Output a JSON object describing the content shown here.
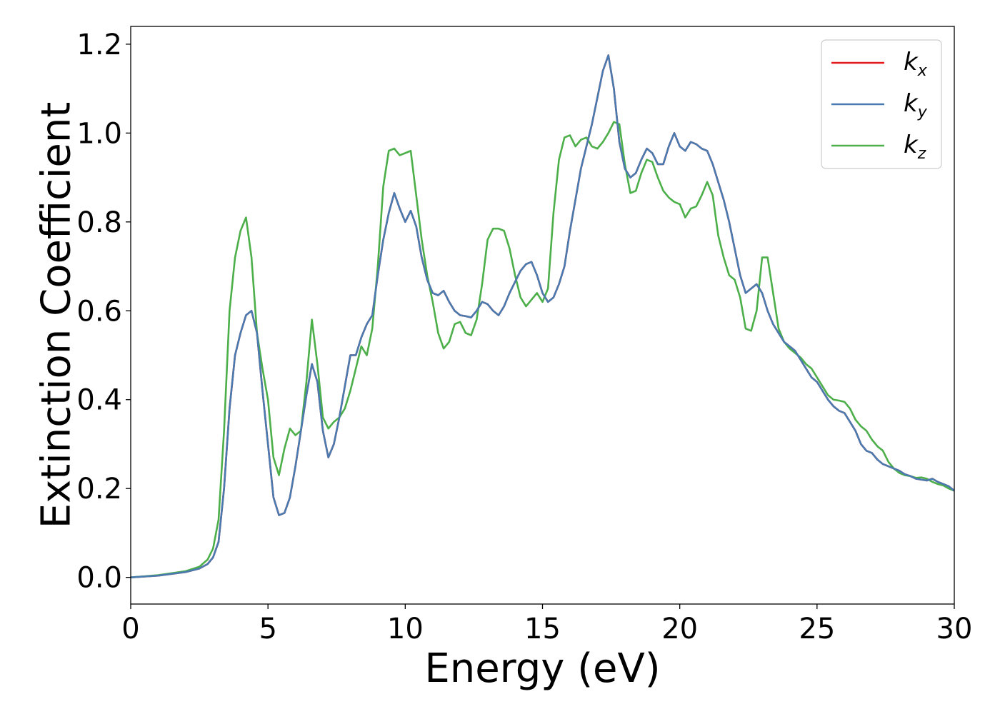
{
  "chart_data": {
    "type": "line",
    "title": "",
    "xlabel": "Energy (eV)",
    "ylabel": "Extinction Coefficient",
    "xlim": [
      0,
      30
    ],
    "ylim": [
      -0.06,
      1.24
    ],
    "xticks": [
      0,
      5,
      10,
      15,
      20,
      25,
      30
    ],
    "xtick_labels": [
      "0",
      "5",
      "10",
      "15",
      "20",
      "25",
      "30"
    ],
    "yticks": [
      0.0,
      0.2,
      0.4,
      0.6,
      0.8,
      1.0,
      1.2
    ],
    "ytick_labels": [
      "0.0",
      "0.2",
      "0.4",
      "0.6",
      "0.8",
      "1.0",
      "1.2"
    ],
    "grid": false,
    "legend_position": "top-right",
    "series": [
      {
        "name": "k",
        "subscript": "x",
        "color": "#e41a1c",
        "x": [
          0,
          1,
          2,
          2.5,
          2.8,
          3.0,
          3.2,
          3.4,
          3.6,
          3.8,
          4.0,
          4.2,
          4.4,
          4.6,
          4.8,
          5.0,
          5.2,
          5.4,
          5.6,
          5.8,
          6.0,
          6.2,
          6.4,
          6.6,
          6.8,
          7.0,
          7.2,
          7.4,
          7.6,
          7.8,
          8.0,
          8.2,
          8.4,
          8.6,
          8.8,
          9.0,
          9.2,
          9.4,
          9.6,
          9.8,
          10.0,
          10.2,
          10.4,
          10.6,
          10.8,
          11.0,
          11.2,
          11.4,
          11.6,
          11.8,
          12.0,
          12.2,
          12.4,
          12.6,
          12.8,
          13.0,
          13.2,
          13.4,
          13.6,
          13.8,
          14.0,
          14.2,
          14.4,
          14.6,
          14.8,
          15.0,
          15.2,
          15.4,
          15.6,
          15.8,
          16.0,
          16.2,
          16.4,
          16.6,
          16.8,
          17.0,
          17.2,
          17.4,
          17.6,
          17.8,
          18.0,
          18.2,
          18.4,
          18.6,
          18.8,
          19.0,
          19.2,
          19.4,
          19.6,
          19.8,
          20.0,
          20.2,
          20.4,
          20.6,
          20.8,
          21.0,
          21.2,
          21.4,
          21.6,
          21.8,
          22.0,
          22.2,
          22.4,
          22.6,
          22.8,
          23.0,
          23.2,
          23.4,
          23.6,
          23.8,
          24.0,
          24.2,
          24.4,
          24.6,
          24.8,
          25.0,
          25.2,
          25.4,
          25.6,
          25.8,
          26.0,
          26.2,
          26.4,
          26.6,
          26.8,
          27.0,
          27.2,
          27.4,
          27.6,
          27.8,
          28.0,
          28.2,
          28.4,
          28.6,
          28.8,
          29.0,
          29.2,
          29.4,
          29.6,
          29.8,
          30.0
        ],
        "y": [
          0.0,
          0.004,
          0.012,
          0.02,
          0.03,
          0.045,
          0.08,
          0.2,
          0.38,
          0.5,
          0.55,
          0.59,
          0.6,
          0.55,
          0.42,
          0.3,
          0.18,
          0.14,
          0.145,
          0.18,
          0.25,
          0.33,
          0.41,
          0.48,
          0.44,
          0.33,
          0.27,
          0.3,
          0.36,
          0.43,
          0.5,
          0.5,
          0.54,
          0.57,
          0.59,
          0.68,
          0.76,
          0.82,
          0.865,
          0.83,
          0.8,
          0.825,
          0.79,
          0.72,
          0.67,
          0.64,
          0.635,
          0.645,
          0.62,
          0.6,
          0.59,
          0.588,
          0.585,
          0.6,
          0.62,
          0.615,
          0.6,
          0.59,
          0.61,
          0.64,
          0.665,
          0.69,
          0.705,
          0.71,
          0.68,
          0.64,
          0.62,
          0.63,
          0.66,
          0.7,
          0.78,
          0.85,
          0.92,
          0.97,
          1.02,
          1.08,
          1.14,
          1.175,
          1.1,
          0.98,
          0.92,
          0.9,
          0.91,
          0.94,
          0.965,
          0.955,
          0.93,
          0.93,
          0.97,
          1.0,
          0.97,
          0.96,
          0.98,
          0.975,
          0.965,
          0.96,
          0.93,
          0.89,
          0.85,
          0.8,
          0.74,
          0.68,
          0.64,
          0.65,
          0.66,
          0.64,
          0.6,
          0.57,
          0.55,
          0.53,
          0.52,
          0.51,
          0.49,
          0.47,
          0.45,
          0.44,
          0.42,
          0.4,
          0.385,
          0.375,
          0.37,
          0.35,
          0.33,
          0.3,
          0.285,
          0.28,
          0.265,
          0.255,
          0.25,
          0.245,
          0.24,
          0.232,
          0.228,
          0.222,
          0.22,
          0.218,
          0.222,
          0.215,
          0.21,
          0.205,
          0.195
        ]
      },
      {
        "name": "k",
        "subscript": "y",
        "color": "#4a7bb0",
        "x": [
          0,
          1,
          2,
          2.5,
          2.8,
          3.0,
          3.2,
          3.4,
          3.6,
          3.8,
          4.0,
          4.2,
          4.4,
          4.6,
          4.8,
          5.0,
          5.2,
          5.4,
          5.6,
          5.8,
          6.0,
          6.2,
          6.4,
          6.6,
          6.8,
          7.0,
          7.2,
          7.4,
          7.6,
          7.8,
          8.0,
          8.2,
          8.4,
          8.6,
          8.8,
          9.0,
          9.2,
          9.4,
          9.6,
          9.8,
          10.0,
          10.2,
          10.4,
          10.6,
          10.8,
          11.0,
          11.2,
          11.4,
          11.6,
          11.8,
          12.0,
          12.2,
          12.4,
          12.6,
          12.8,
          13.0,
          13.2,
          13.4,
          13.6,
          13.8,
          14.0,
          14.2,
          14.4,
          14.6,
          14.8,
          15.0,
          15.2,
          15.4,
          15.6,
          15.8,
          16.0,
          16.2,
          16.4,
          16.6,
          16.8,
          17.0,
          17.2,
          17.4,
          17.6,
          17.8,
          18.0,
          18.2,
          18.4,
          18.6,
          18.8,
          19.0,
          19.2,
          19.4,
          19.6,
          19.8,
          20.0,
          20.2,
          20.4,
          20.6,
          20.8,
          21.0,
          21.2,
          21.4,
          21.6,
          21.8,
          22.0,
          22.2,
          22.4,
          22.6,
          22.8,
          23.0,
          23.2,
          23.4,
          23.6,
          23.8,
          24.0,
          24.2,
          24.4,
          24.6,
          24.8,
          25.0,
          25.2,
          25.4,
          25.6,
          25.8,
          26.0,
          26.2,
          26.4,
          26.6,
          26.8,
          27.0,
          27.2,
          27.4,
          27.6,
          27.8,
          28.0,
          28.2,
          28.4,
          28.6,
          28.8,
          29.0,
          29.2,
          29.4,
          29.6,
          29.8,
          30.0
        ],
        "y": [
          0.0,
          0.004,
          0.012,
          0.02,
          0.03,
          0.045,
          0.08,
          0.2,
          0.38,
          0.5,
          0.55,
          0.59,
          0.6,
          0.55,
          0.42,
          0.3,
          0.18,
          0.14,
          0.145,
          0.18,
          0.25,
          0.33,
          0.41,
          0.48,
          0.44,
          0.33,
          0.27,
          0.3,
          0.36,
          0.43,
          0.5,
          0.5,
          0.54,
          0.57,
          0.59,
          0.68,
          0.76,
          0.82,
          0.865,
          0.83,
          0.8,
          0.825,
          0.79,
          0.72,
          0.67,
          0.64,
          0.635,
          0.645,
          0.62,
          0.6,
          0.59,
          0.588,
          0.585,
          0.6,
          0.62,
          0.615,
          0.6,
          0.59,
          0.61,
          0.64,
          0.665,
          0.69,
          0.705,
          0.71,
          0.68,
          0.64,
          0.62,
          0.63,
          0.66,
          0.7,
          0.78,
          0.85,
          0.92,
          0.97,
          1.02,
          1.08,
          1.14,
          1.175,
          1.1,
          0.98,
          0.92,
          0.9,
          0.91,
          0.94,
          0.965,
          0.955,
          0.93,
          0.93,
          0.97,
          1.0,
          0.97,
          0.96,
          0.98,
          0.975,
          0.965,
          0.96,
          0.93,
          0.89,
          0.85,
          0.8,
          0.74,
          0.68,
          0.64,
          0.65,
          0.66,
          0.64,
          0.6,
          0.57,
          0.55,
          0.53,
          0.52,
          0.51,
          0.49,
          0.47,
          0.45,
          0.44,
          0.42,
          0.4,
          0.385,
          0.375,
          0.37,
          0.35,
          0.33,
          0.3,
          0.285,
          0.28,
          0.265,
          0.255,
          0.25,
          0.245,
          0.24,
          0.232,
          0.228,
          0.222,
          0.22,
          0.218,
          0.222,
          0.215,
          0.21,
          0.205,
          0.195
        ]
      },
      {
        "name": "k",
        "subscript": "z",
        "color": "#4daf4a",
        "x": [
          0,
          1,
          2,
          2.5,
          2.8,
          3.0,
          3.2,
          3.4,
          3.6,
          3.8,
          4.0,
          4.2,
          4.4,
          4.6,
          4.8,
          5.0,
          5.2,
          5.4,
          5.6,
          5.8,
          6.0,
          6.2,
          6.4,
          6.6,
          6.8,
          7.0,
          7.2,
          7.4,
          7.6,
          7.8,
          8.0,
          8.2,
          8.4,
          8.6,
          8.8,
          9.0,
          9.2,
          9.4,
          9.6,
          9.8,
          10.0,
          10.2,
          10.4,
          10.6,
          10.8,
          11.0,
          11.2,
          11.4,
          11.6,
          11.8,
          12.0,
          12.2,
          12.4,
          12.6,
          12.8,
          13.0,
          13.2,
          13.4,
          13.6,
          13.8,
          14.0,
          14.2,
          14.4,
          14.6,
          14.8,
          15.0,
          15.2,
          15.4,
          15.6,
          15.8,
          16.0,
          16.2,
          16.4,
          16.6,
          16.8,
          17.0,
          17.2,
          17.4,
          17.6,
          17.8,
          18.0,
          18.2,
          18.4,
          18.6,
          18.8,
          19.0,
          19.2,
          19.4,
          19.6,
          19.8,
          20.0,
          20.2,
          20.4,
          20.6,
          20.8,
          21.0,
          21.2,
          21.4,
          21.6,
          21.8,
          22.0,
          22.2,
          22.4,
          22.6,
          22.8,
          23.0,
          23.2,
          23.4,
          23.6,
          23.8,
          24.0,
          24.2,
          24.4,
          24.6,
          24.8,
          25.0,
          25.2,
          25.4,
          25.6,
          25.8,
          26.0,
          26.2,
          26.4,
          26.6,
          26.8,
          27.0,
          27.2,
          27.4,
          27.6,
          27.8,
          28.0,
          28.2,
          28.4,
          28.6,
          28.8,
          29.0,
          29.2,
          29.4,
          29.6,
          29.8,
          30.0
        ],
        "y": [
          0.0,
          0.005,
          0.014,
          0.024,
          0.04,
          0.065,
          0.13,
          0.33,
          0.6,
          0.72,
          0.78,
          0.81,
          0.72,
          0.55,
          0.47,
          0.4,
          0.27,
          0.23,
          0.29,
          0.335,
          0.32,
          0.33,
          0.44,
          0.58,
          0.48,
          0.36,
          0.335,
          0.35,
          0.36,
          0.38,
          0.42,
          0.47,
          0.52,
          0.5,
          0.56,
          0.7,
          0.88,
          0.96,
          0.965,
          0.95,
          0.955,
          0.96,
          0.86,
          0.76,
          0.68,
          0.62,
          0.55,
          0.515,
          0.53,
          0.57,
          0.575,
          0.55,
          0.545,
          0.58,
          0.66,
          0.76,
          0.785,
          0.785,
          0.78,
          0.74,
          0.68,
          0.63,
          0.61,
          0.625,
          0.64,
          0.62,
          0.65,
          0.82,
          0.94,
          0.99,
          0.995,
          0.97,
          0.985,
          0.99,
          0.97,
          0.965,
          0.98,
          1.0,
          1.025,
          1.02,
          0.93,
          0.865,
          0.87,
          0.91,
          0.94,
          0.935,
          0.9,
          0.87,
          0.855,
          0.845,
          0.84,
          0.81,
          0.83,
          0.835,
          0.86,
          0.89,
          0.86,
          0.77,
          0.72,
          0.68,
          0.67,
          0.63,
          0.56,
          0.555,
          0.6,
          0.72,
          0.72,
          0.64,
          0.56,
          0.53,
          0.515,
          0.505,
          0.495,
          0.48,
          0.47,
          0.45,
          0.43,
          0.41,
          0.4,
          0.398,
          0.395,
          0.38,
          0.355,
          0.34,
          0.33,
          0.31,
          0.295,
          0.285,
          0.26,
          0.245,
          0.235,
          0.23,
          0.228,
          0.224,
          0.225,
          0.222,
          0.215,
          0.21,
          0.207,
          0.2,
          0.195
        ]
      }
    ]
  }
}
